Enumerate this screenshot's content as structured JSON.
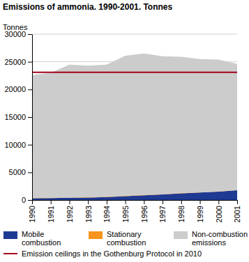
{
  "chart_data": {
    "type": "area",
    "title": "Emissions of ammonia. 1990-2001. Tonnes",
    "y_label": "Tonnes",
    "categories": [
      "1990",
      "1991",
      "1992",
      "1993",
      "1994",
      "1995",
      "1996",
      "1997",
      "1998",
      "1999",
      "2000",
      "2001"
    ],
    "stacked": true,
    "grid": true,
    "legend": "bottom",
    "ylim": [
      0,
      30000
    ],
    "yticks": [
      0,
      5000,
      10000,
      15000,
      20000,
      25000,
      30000
    ],
    "series": [
      {
        "name": "Mobile combustion",
        "color": "#1f3a93",
        "values": [
          300,
          350,
          400,
          450,
          550,
          700,
          850,
          1000,
          1200,
          1350,
          1500,
          1750
        ]
      },
      {
        "name": "Stationary combustion",
        "color": "#f7941d",
        "values": [
          50,
          50,
          50,
          50,
          50,
          50,
          50,
          50,
          50,
          50,
          50,
          50
        ]
      },
      {
        "name": "Non-combustion emissions",
        "color": "#cccccc",
        "values": [
          22250,
          22600,
          24050,
          23800,
          23900,
          25350,
          25600,
          24950,
          24650,
          24100,
          23850,
          22800
        ]
      },
      {
        "name": "Emission ceilings in the Gothenburg Protocol in 2010",
        "color": "#a3001b",
        "type": "line",
        "values": [
          23100,
          23100,
          23100,
          23100,
          23100,
          23100,
          23100,
          23100,
          23100,
          23100,
          23100,
          23100
        ]
      }
    ]
  }
}
